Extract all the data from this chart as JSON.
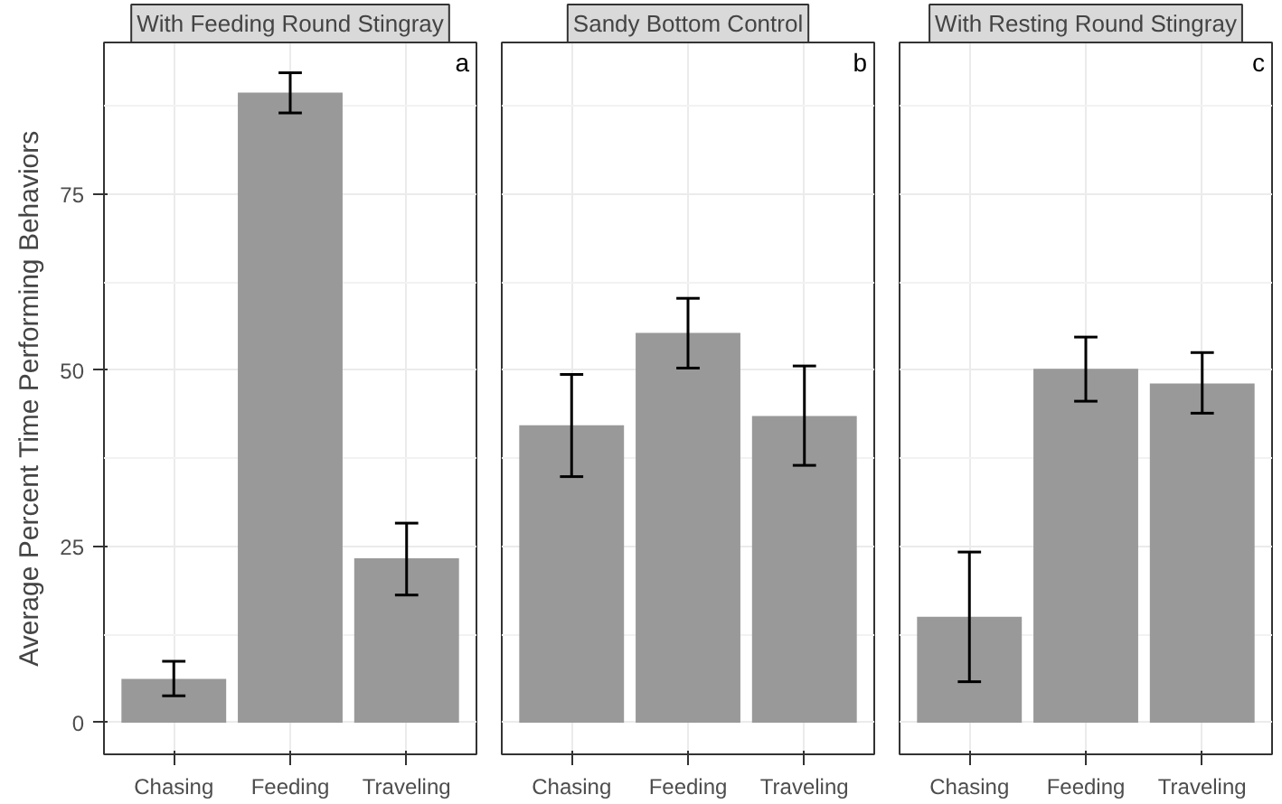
{
  "chart_data": [
    {
      "type": "bar",
      "title": "With Feeding Round Stingray",
      "ylabel": "Average Percent Time Performing Behaviors",
      "categories": [
        "Chasing",
        "Feeding",
        "Traveling"
      ],
      "values": [
        6.2,
        89.4,
        23.3
      ],
      "errors": [
        [
          3.8,
          8.7
        ],
        [
          86.5,
          92.2
        ],
        [
          18.1,
          28.3
        ]
      ],
      "color": "#999999",
      "ylim": [
        -4.5,
        96.5
      ],
      "yticks": [
        0,
        {
          "value": 12.5,
          "label": null
        },
        25,
        {
          "value": 37.5,
          "label": null
        },
        50,
        {
          "value": 62.5,
          "label": null
        },
        75,
        {
          "value": 87.5,
          "label": null
        }
      ],
      "grid": true,
      "annotations": [
        "a"
      ]
    },
    {
      "type": "bar",
      "title": "Sandy Bottom Control",
      "categories": [
        "Chasing",
        "Feeding",
        "Traveling"
      ],
      "values": [
        42.2,
        55.3,
        43.5
      ],
      "errors": [
        [
          34.9,
          49.4
        ],
        [
          50.3,
          60.2
        ],
        [
          36.5,
          50.6
        ]
      ],
      "color": "#999999",
      "ylim": [
        -4.5,
        96.5
      ],
      "yticks": [
        0,
        {
          "value": 12.5,
          "label": null
        },
        25,
        {
          "value": 37.5,
          "label": null
        },
        50,
        {
          "value": 62.5,
          "label": null
        },
        75,
        {
          "value": 87.5,
          "label": null
        }
      ],
      "grid": true,
      "tick_labels": "x",
      "annotations": [
        "b"
      ]
    },
    {
      "type": "bar",
      "title": "With Resting Round Stingray",
      "categories": [
        "Chasing",
        "Feeding",
        "Traveling"
      ],
      "values": [
        15.0,
        50.2,
        48.1
      ],
      "errors": [
        [
          5.8,
          24.2
        ],
        [
          45.6,
          54.7
        ],
        [
          43.9,
          52.5
        ]
      ],
      "color": "#999999",
      "ylim": [
        -4.5,
        96.5
      ],
      "yticks": [
        0,
        {
          "value": 12.5,
          "label": null
        },
        25,
        {
          "value": 37.5,
          "label": null
        },
        50,
        {
          "value": 62.5,
          "label": null
        },
        75,
        {
          "value": 87.5,
          "label": null
        }
      ],
      "grid": true,
      "tick_labels": "x",
      "annotations": [
        "c"
      ]
    }
  ]
}
